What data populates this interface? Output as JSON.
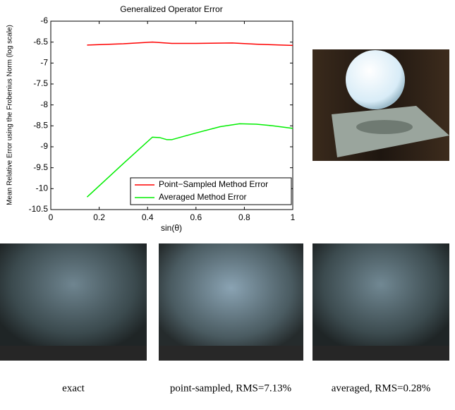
{
  "chart_data": {
    "type": "line",
    "title": "Generalized Operator Error",
    "xlabel": "sin(θ)",
    "ylabel": "Mean Relative Error using the Frobenius Norm (log scale)",
    "xlim": [
      0,
      1
    ],
    "xticks": [
      0,
      0.2,
      0.4,
      0.6,
      0.8,
      1
    ],
    "ylim": [
      -10.5,
      -6
    ],
    "yticks": [
      -10.5,
      -10,
      -9.5,
      -9,
      -8.5,
      -8,
      -7.5,
      -7,
      -6.5,
      -6
    ],
    "legend": "lower right",
    "series": [
      {
        "name": "Point−Sampled Method Error",
        "color": "#ff0000",
        "x": [
          0.15,
          0.3,
          0.42,
          0.5,
          0.6,
          0.75,
          0.85,
          1
        ],
        "values": [
          -6.57,
          -6.54,
          -6.5,
          -6.53,
          -6.53,
          -6.52,
          -6.55,
          -6.58
        ]
      },
      {
        "name": "Averaged Method Error",
        "color": "#00ee00",
        "x": [
          0.15,
          0.3,
          0.42,
          0.45,
          0.48,
          0.5,
          0.6,
          0.7,
          0.78,
          0.85,
          0.92,
          1
        ],
        "values": [
          -10.2,
          -9.4,
          -8.77,
          -8.78,
          -8.83,
          -8.83,
          -8.67,
          -8.52,
          -8.45,
          -8.46,
          -8.5,
          -8.56
        ]
      }
    ]
  },
  "figure": {
    "captions": [
      "exact",
      "point-sampled, RMS=7.13%",
      "averaged, RMS=0.28%"
    ]
  }
}
